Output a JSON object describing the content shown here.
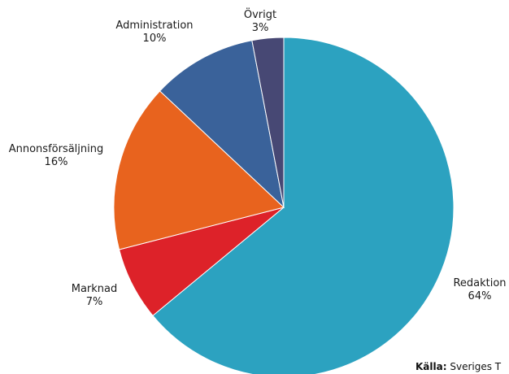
{
  "chart_data": {
    "type": "pie",
    "start_angle_deg": 0,
    "direction": "clockwise",
    "slices": [
      {
        "label": "Redaktion",
        "value": 64,
        "value_label": "64%",
        "color": "#2ca2c0"
      },
      {
        "label": "Marknad",
        "value": 7,
        "value_label": "7%",
        "color": "#dd2229"
      },
      {
        "label": "Annonsförsäljning",
        "value": 16,
        "value_label": "16%",
        "color": "#e8631e"
      },
      {
        "label": "Administration",
        "value": 10,
        "value_label": "10%",
        "color": "#3a629a"
      },
      {
        "label": "Övrigt",
        "value": 3,
        "value_label": "3%",
        "color": "#474874"
      }
    ]
  },
  "source": {
    "label": "Källa:",
    "text": "Sveriges T"
  }
}
